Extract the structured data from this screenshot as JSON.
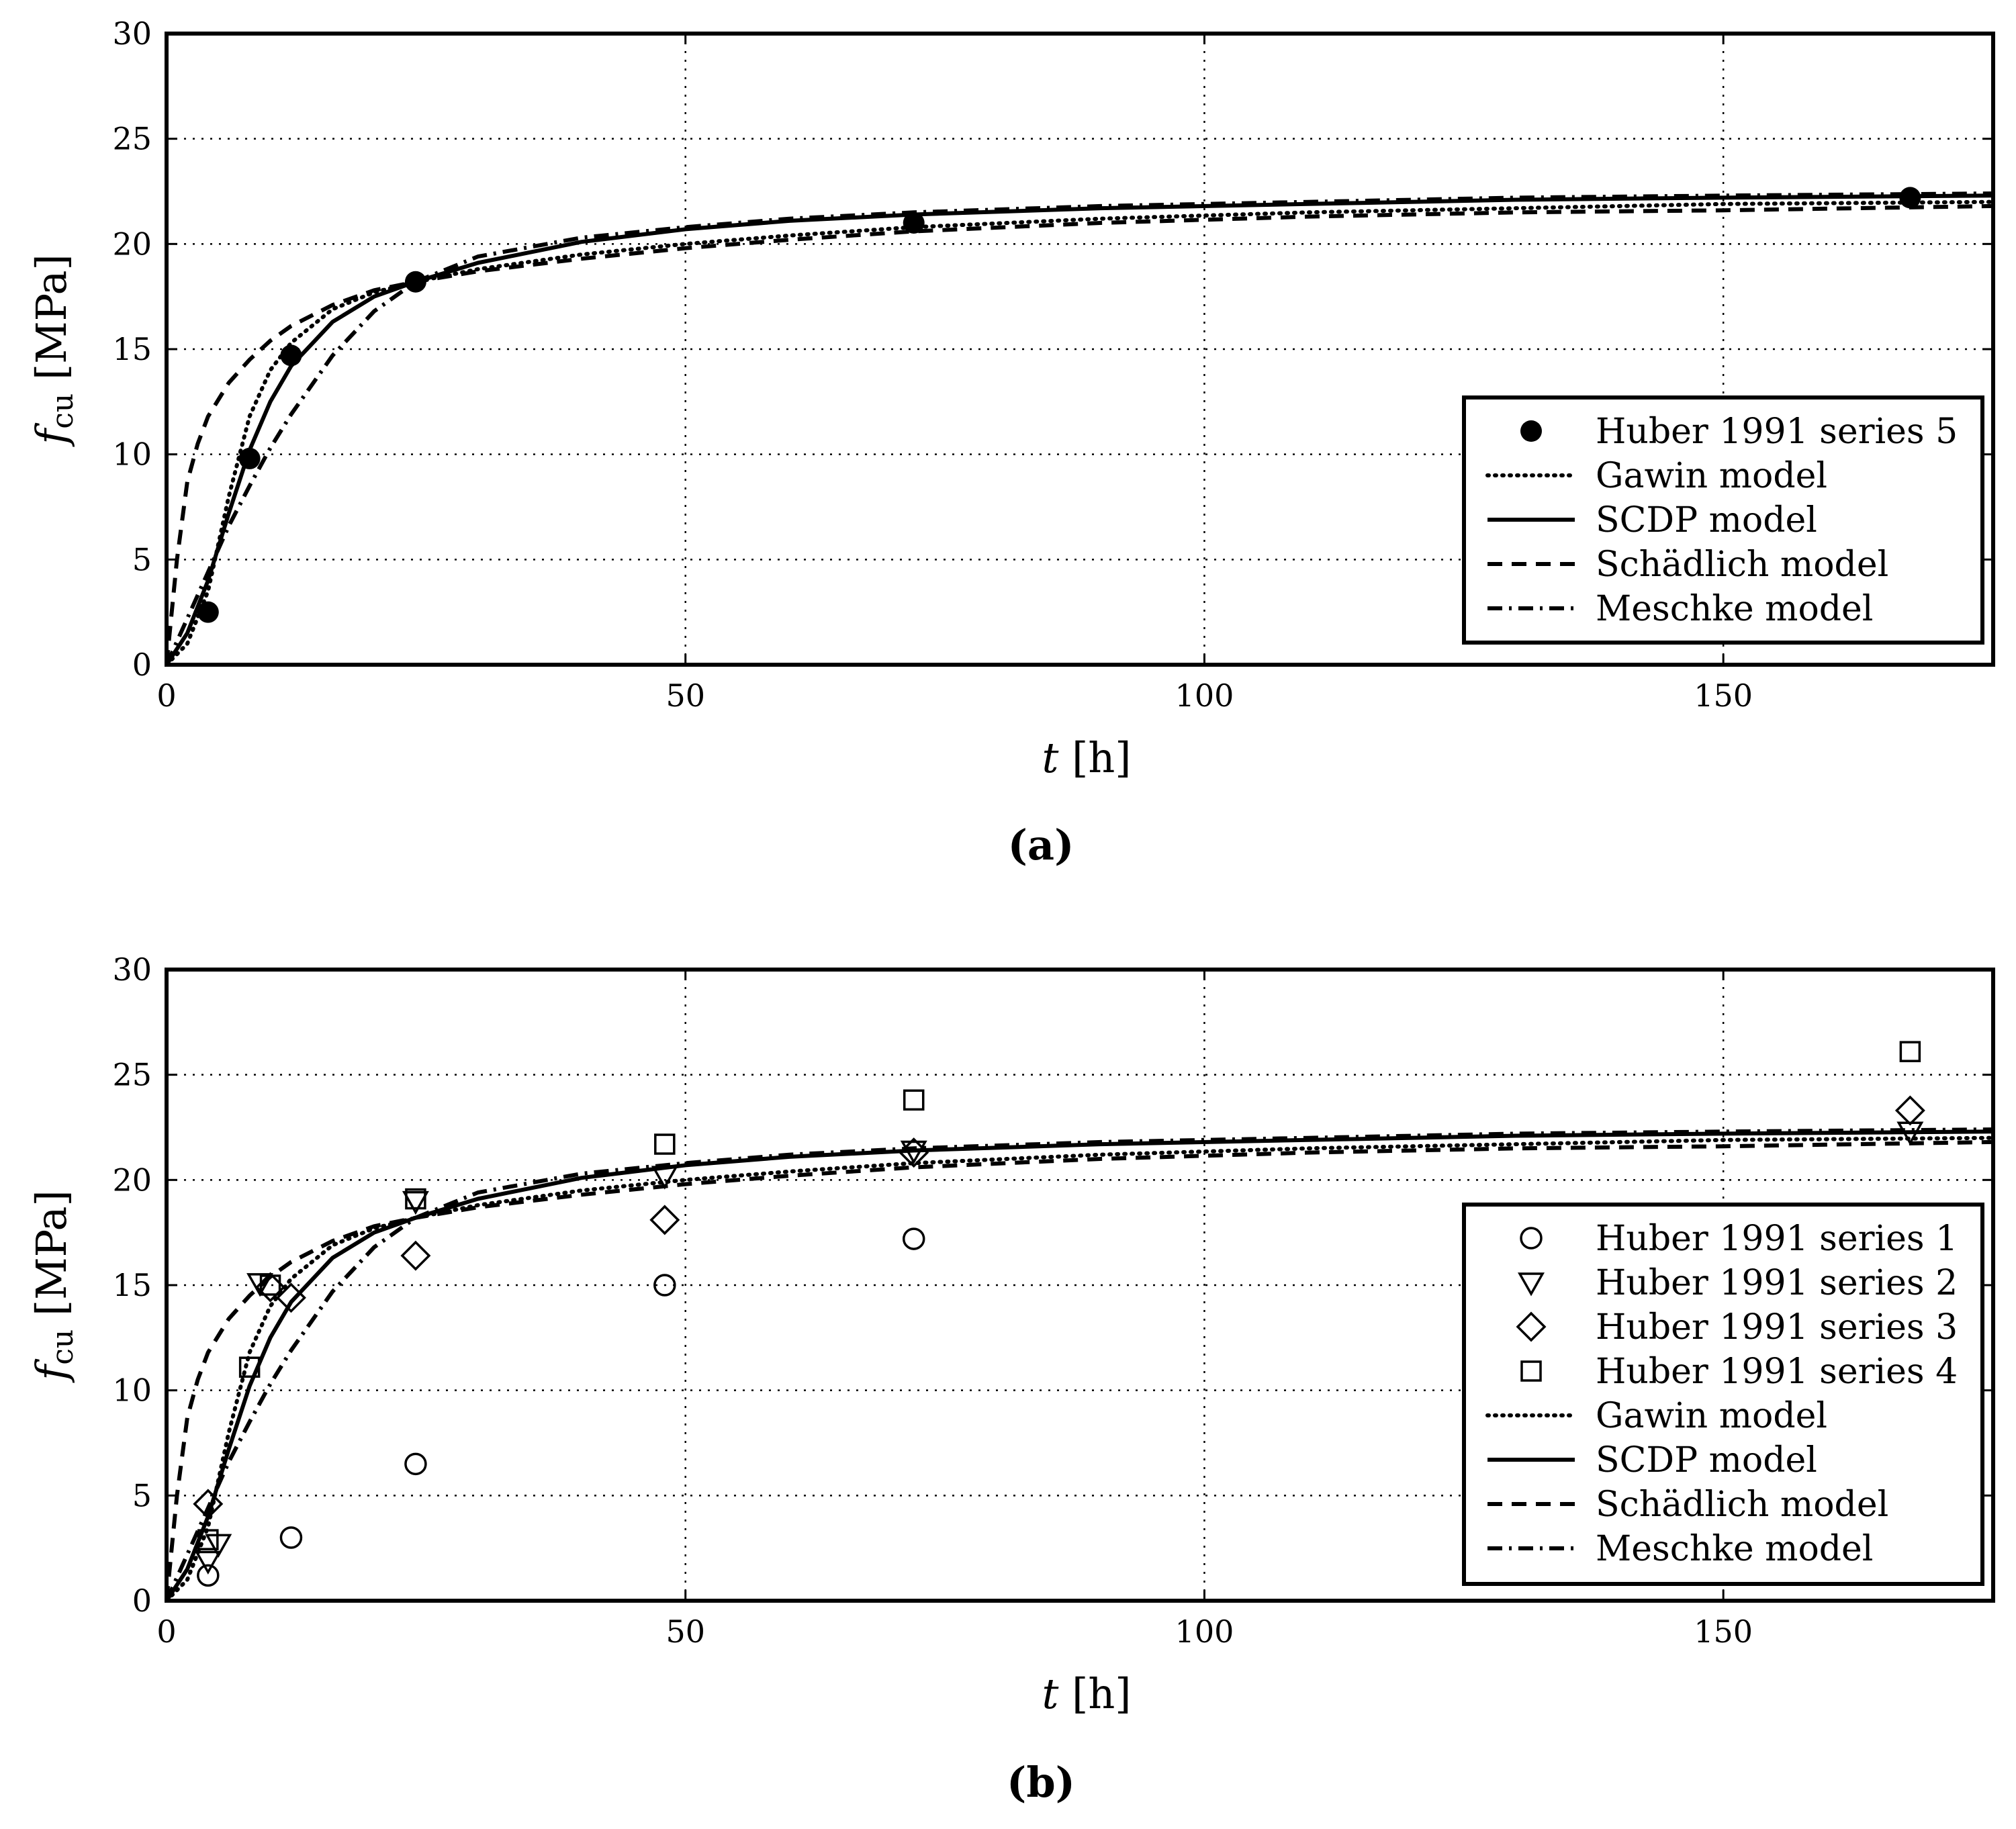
{
  "figure": {
    "panels": [
      "(a)",
      "(b)"
    ]
  },
  "chart_data": [
    {
      "type": "line",
      "panel_label": "(a)",
      "xlabel_var": "t",
      "xlabel_unit": "[h]",
      "ylabel_var": "f",
      "ylabel_sub": "cu",
      "ylabel_unit": "[MPa]",
      "xlim": [
        0,
        176
      ],
      "ylim": [
        0,
        30
      ],
      "xticks": [
        0,
        50,
        100,
        150
      ],
      "yticks": [
        0,
        5,
        10,
        15,
        20,
        25,
        30
      ],
      "grid": true,
      "legend_position": "lower-right",
      "legend": [
        "Huber 1991 series 5",
        "Gawin model",
        "SCDP model",
        "Schädlich model",
        "Meschke model"
      ],
      "points": [
        {
          "name": "Huber 1991 series 5",
          "marker": "filled-circle",
          "x": [
            4,
            8,
            12,
            24,
            72,
            168
          ],
          "y": [
            2.5,
            9.8,
            14.7,
            18.2,
            21.0,
            22.2
          ]
        }
      ],
      "series": [
        {
          "name": "Gawin model",
          "style": "dotted",
          "x": [
            0,
            2,
            4,
            6,
            8,
            10,
            12,
            16,
            20,
            24,
            30,
            40,
            50,
            60,
            72,
            90,
            110,
            130,
            150,
            176
          ],
          "y": [
            0,
            1.0,
            3.5,
            8.0,
            11.8,
            14.0,
            15.3,
            16.9,
            17.7,
            18.2,
            18.8,
            19.5,
            20.0,
            20.4,
            20.8,
            21.2,
            21.5,
            21.7,
            21.9,
            22.0
          ]
        },
        {
          "name": "SCDP model",
          "style": "solid",
          "x": [
            0,
            2,
            4,
            6,
            8,
            10,
            12,
            16,
            20,
            24,
            30,
            40,
            50,
            60,
            72,
            90,
            110,
            130,
            150,
            176
          ],
          "y": [
            0,
            1.5,
            4.0,
            7.2,
            10.2,
            12.5,
            14.2,
            16.3,
            17.5,
            18.2,
            19.1,
            20.1,
            20.7,
            21.1,
            21.4,
            21.7,
            21.9,
            22.1,
            22.2,
            22.3
          ]
        },
        {
          "name": "Schädlich model",
          "style": "dashed",
          "x": [
            0,
            0.5,
            1,
            2,
            3,
            4,
            6,
            8,
            10,
            12,
            16,
            20,
            24,
            30,
            40,
            50,
            60,
            72,
            90,
            110,
            130,
            150,
            176
          ],
          "y": [
            0,
            2.5,
            5.0,
            8.7,
            10.5,
            11.8,
            13.4,
            14.5,
            15.4,
            16.1,
            17.1,
            17.8,
            18.2,
            18.7,
            19.3,
            19.8,
            20.2,
            20.6,
            21.0,
            21.3,
            21.5,
            21.6,
            21.8
          ]
        },
        {
          "name": "Meschke model",
          "style": "dashdot",
          "x": [
            0,
            2,
            4,
            6,
            8,
            10,
            12,
            16,
            20,
            24,
            30,
            40,
            50,
            60,
            72,
            90,
            110,
            130,
            150,
            176
          ],
          "y": [
            0,
            2.2,
            4.4,
            6.6,
            8.5,
            10.3,
            11.9,
            14.7,
            16.8,
            18.2,
            19.4,
            20.3,
            20.8,
            21.2,
            21.5,
            21.8,
            22.0,
            22.2,
            22.3,
            22.4
          ]
        }
      ]
    },
    {
      "type": "line",
      "panel_label": "(b)",
      "xlabel_var": "t",
      "xlabel_unit": "[h]",
      "ylabel_var": "f",
      "ylabel_sub": "cu",
      "ylabel_unit": "[MPa]",
      "xlim": [
        0,
        176
      ],
      "ylim": [
        0,
        30
      ],
      "xticks": [
        0,
        50,
        100,
        150
      ],
      "yticks": [
        0,
        5,
        10,
        15,
        20,
        25,
        30
      ],
      "grid": true,
      "legend_position": "lower-right",
      "legend": [
        "Huber 1991 series 1",
        "Huber 1991 series 2",
        "Huber 1991 series 3",
        "Huber 1991 series 4",
        "Gawin model",
        "SCDP model",
        "Schädlich model",
        "Meschke model"
      ],
      "points": [
        {
          "name": "Huber 1991 series 1",
          "marker": "open-circle",
          "x": [
            4,
            12,
            24,
            48,
            72
          ],
          "y": [
            1.2,
            3.0,
            6.5,
            15.0,
            17.2
          ]
        },
        {
          "name": "Huber 1991 series 2",
          "marker": "open-triangle-down",
          "x": [
            4,
            5,
            9,
            24,
            48,
            72,
            168
          ],
          "y": [
            1.9,
            2.7,
            15.1,
            19.0,
            20.2,
            21.4,
            22.3
          ]
        },
        {
          "name": "Huber 1991 series 3",
          "marker": "open-diamond",
          "x": [
            4,
            10,
            12,
            24,
            48,
            72,
            168
          ],
          "y": [
            4.6,
            14.9,
            14.4,
            16.4,
            18.1,
            21.3,
            23.3
          ]
        },
        {
          "name": "Huber 1991 series 4",
          "marker": "open-square",
          "x": [
            4,
            8,
            10,
            24,
            48,
            72,
            168
          ],
          "y": [
            2.9,
            11.1,
            15.0,
            19.1,
            21.7,
            23.8,
            26.1
          ]
        }
      ],
      "series": [
        {
          "name": "Gawin model",
          "style": "dotted",
          "x": [
            0,
            2,
            4,
            6,
            8,
            10,
            12,
            16,
            20,
            24,
            30,
            40,
            50,
            60,
            72,
            90,
            110,
            130,
            150,
            176
          ],
          "y": [
            0,
            1.0,
            3.5,
            8.0,
            11.8,
            14.0,
            15.3,
            16.9,
            17.7,
            18.2,
            18.8,
            19.5,
            20.0,
            20.4,
            20.8,
            21.2,
            21.5,
            21.7,
            21.9,
            22.0
          ]
        },
        {
          "name": "SCDP model",
          "style": "solid",
          "x": [
            0,
            2,
            4,
            6,
            8,
            10,
            12,
            16,
            20,
            24,
            30,
            40,
            50,
            60,
            72,
            90,
            110,
            130,
            150,
            176
          ],
          "y": [
            0,
            1.5,
            4.0,
            7.2,
            10.2,
            12.5,
            14.2,
            16.3,
            17.5,
            18.2,
            19.1,
            20.1,
            20.7,
            21.1,
            21.4,
            21.7,
            21.9,
            22.1,
            22.2,
            22.3
          ]
        },
        {
          "name": "Schädlich model",
          "style": "dashed",
          "x": [
            0,
            0.5,
            1,
            2,
            3,
            4,
            6,
            8,
            10,
            12,
            16,
            20,
            24,
            30,
            40,
            50,
            60,
            72,
            90,
            110,
            130,
            150,
            176
          ],
          "y": [
            0,
            2.5,
            5.0,
            8.7,
            10.5,
            11.8,
            13.4,
            14.5,
            15.4,
            16.1,
            17.1,
            17.8,
            18.2,
            18.7,
            19.3,
            19.8,
            20.2,
            20.6,
            21.0,
            21.3,
            21.5,
            21.6,
            21.8
          ]
        },
        {
          "name": "Meschke model",
          "style": "dashdot",
          "x": [
            0,
            2,
            4,
            6,
            8,
            10,
            12,
            16,
            20,
            24,
            30,
            40,
            50,
            60,
            72,
            90,
            110,
            130,
            150,
            176
          ],
          "y": [
            0,
            2.2,
            4.4,
            6.6,
            8.5,
            10.3,
            11.9,
            14.7,
            16.8,
            18.2,
            19.4,
            20.3,
            20.8,
            21.2,
            21.5,
            21.8,
            22.0,
            22.2,
            22.3,
            22.4
          ]
        }
      ]
    }
  ]
}
